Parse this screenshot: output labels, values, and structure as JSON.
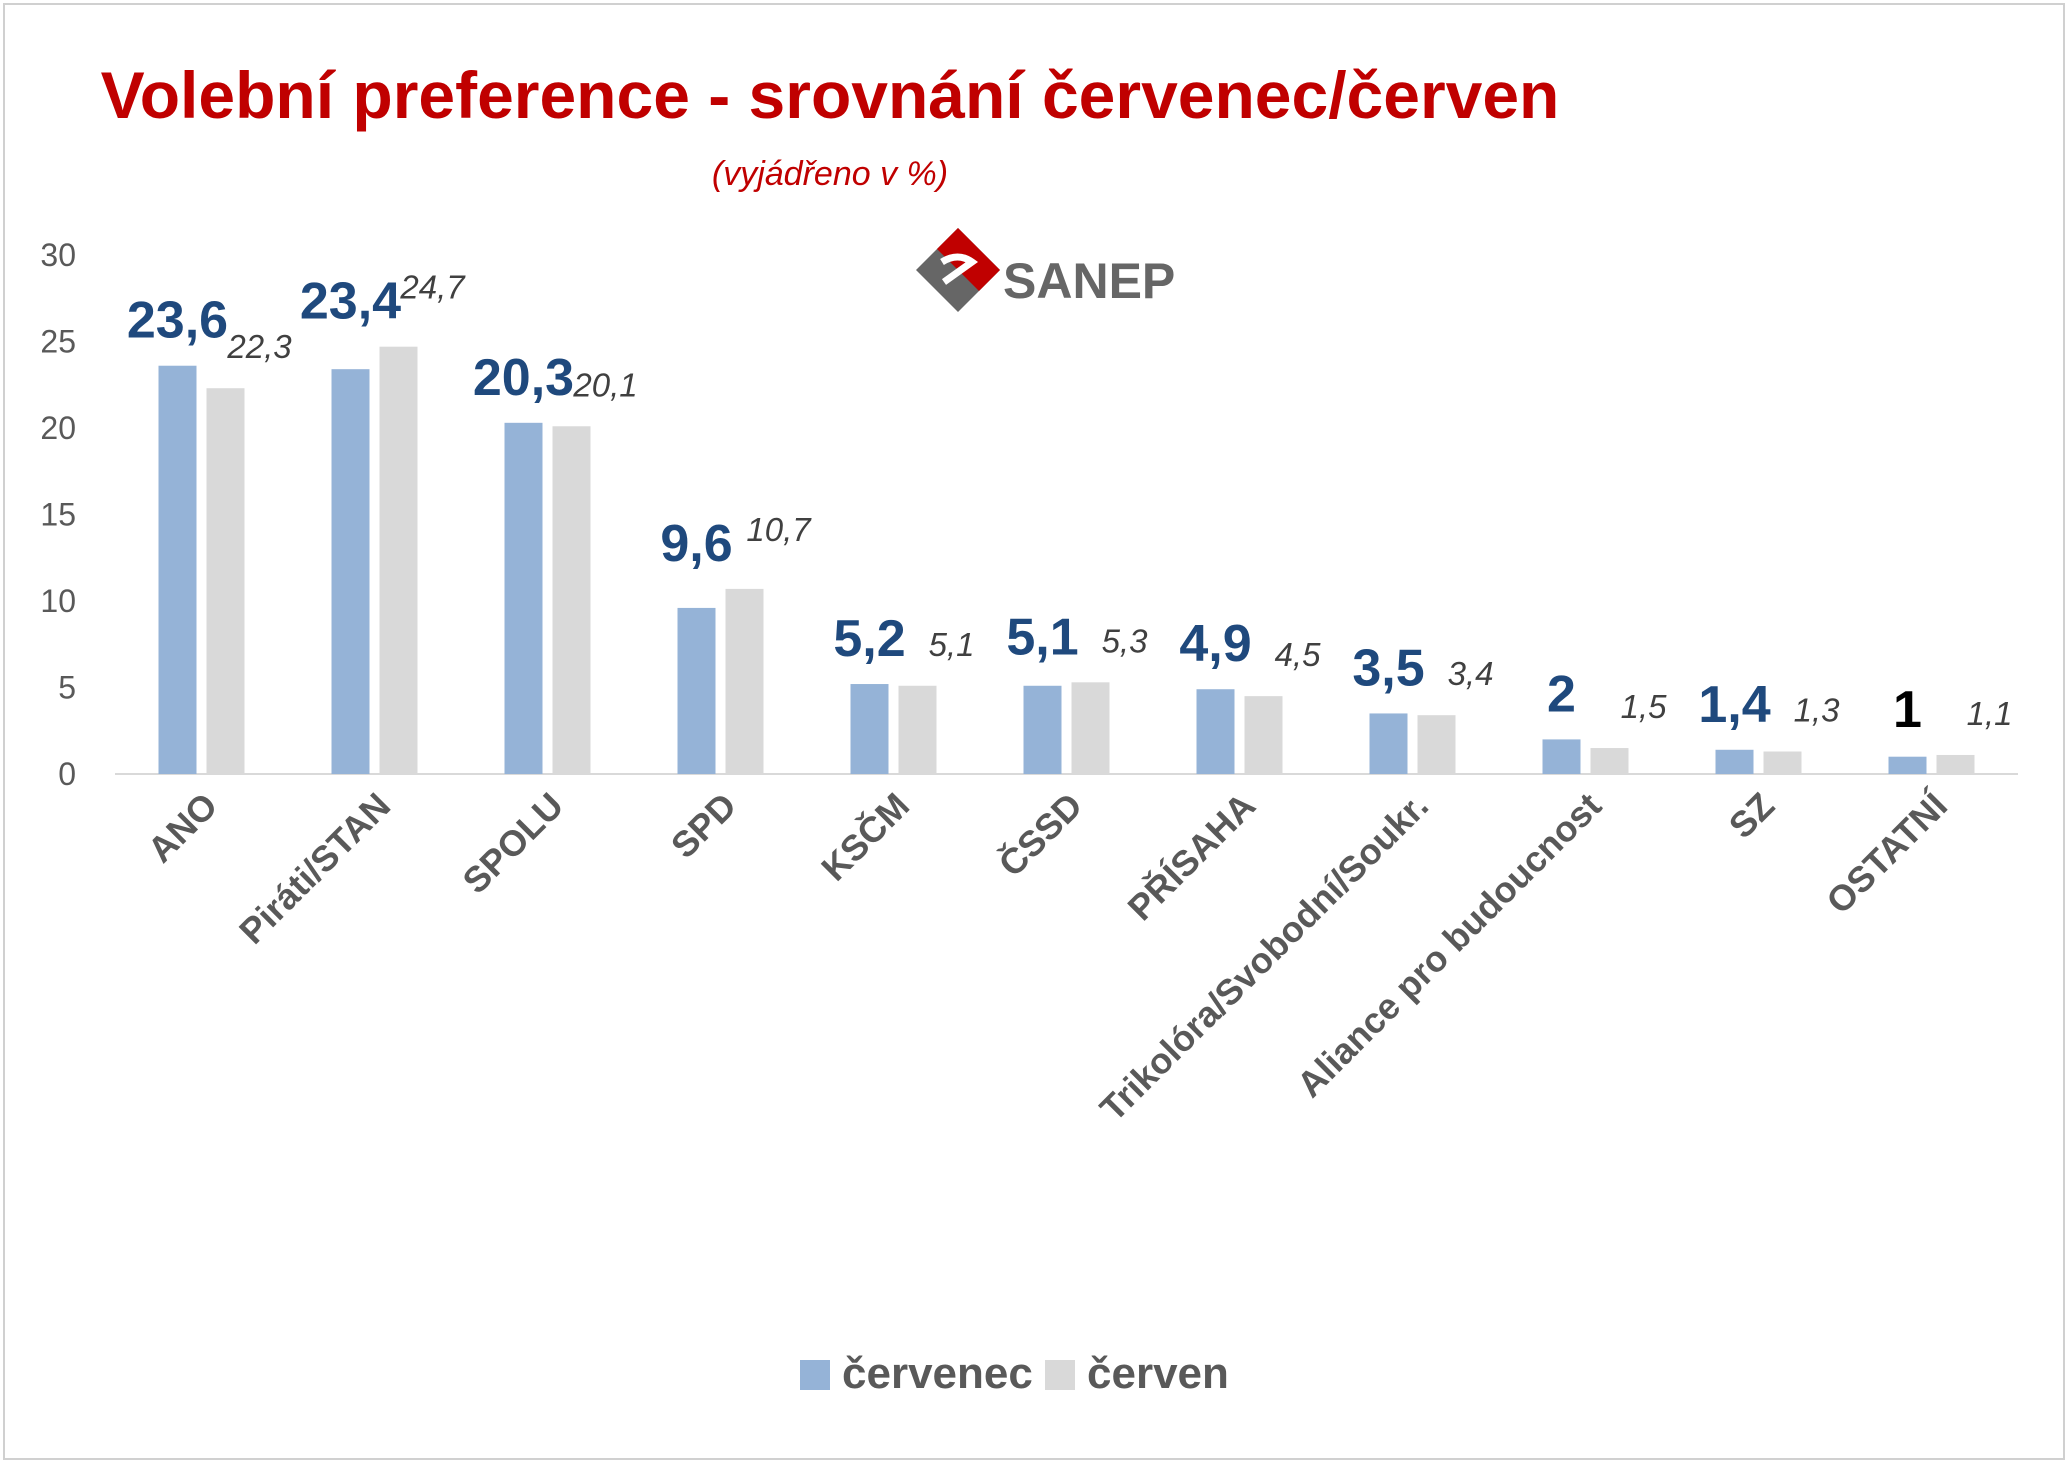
{
  "chart_data": {
    "type": "bar",
    "title": "Volební preference - srovnání červenec/červen",
    "subtitle": "(vyjádřeno v %)",
    "logo_text": "SANEP",
    "categories": [
      "ANO",
      "Piráti/STAN",
      "SPOLU",
      "SPD",
      "KSČM",
      "ČSSD",
      "PŘÍSAHA",
      "Trikolóra/Svobodní/Soukr.",
      "Aliance pro budoucnost",
      "SZ",
      "OSTATNÍ"
    ],
    "series": [
      {
        "name": "červenec",
        "values": [
          23.6,
          23.4,
          20.3,
          9.6,
          5.2,
          5.1,
          4.9,
          3.5,
          2,
          1.4,
          1
        ],
        "labels": [
          "23,6",
          "23,4",
          "20,3",
          "9,6",
          "5,2",
          "5,1",
          "4,9",
          "3,5",
          "2",
          "1,4",
          "1"
        ],
        "color": "#95b3d7",
        "label_color": "#1f497d",
        "last_label_color": "#000000"
      },
      {
        "name": "červen",
        "values": [
          22.3,
          24.7,
          20.1,
          10.7,
          5.1,
          5.3,
          4.5,
          3.4,
          1.5,
          1.3,
          1.1
        ],
        "labels": [
          "22,3",
          "24,7",
          "20,1",
          "10,7",
          "5,1",
          "5,3",
          "4,5",
          "3,4",
          "1,5",
          "1,3",
          "1,1"
        ],
        "color": "#d9d9d9",
        "label_color": "#404040"
      }
    ],
    "yticks": [
      "0",
      "5",
      "10",
      "15",
      "20",
      "25",
      "30"
    ],
    "ylim": [
      0,
      30
    ],
    "grid": false,
    "legend": "bottom-center",
    "title_color": "#c00000",
    "subtitle_color": "#c00000",
    "axis_text_color": "#595959"
  }
}
